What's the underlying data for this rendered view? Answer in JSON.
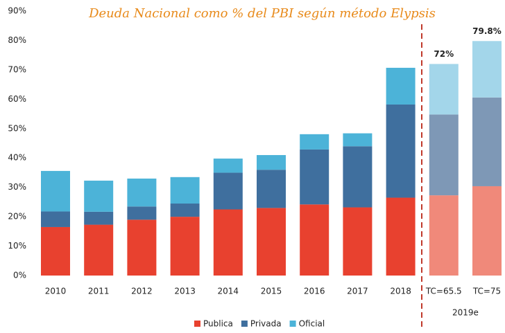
{
  "chart_data": {
    "type": "stacked_bar",
    "title": "Deuda Nacional como % del PBI según método Elypsis",
    "categories": [
      "2010",
      "2011",
      "2012",
      "2013",
      "2014",
      "2015",
      "2016",
      "2017",
      "2018",
      "TC=65.5",
      "TC=75"
    ],
    "group_label": "2019e",
    "series": [
      {
        "name": "Publica",
        "color": "#e8412f",
        "colors": [
          "#e8412f",
          "#e8412f",
          "#e8412f",
          "#e8412f",
          "#e8412f",
          "#e8412f",
          "#e8412f",
          "#e8412f",
          "#e8412f",
          "#f0897a",
          "#f0897a"
        ],
        "values": [
          16.5,
          17.3,
          19,
          20,
          22.5,
          23,
          24.2,
          23.2,
          26.5,
          27.3,
          30.4
        ]
      },
      {
        "name": "Privada",
        "color": "#3f6f9e",
        "colors": [
          "#3f6f9e",
          "#3f6f9e",
          "#3f6f9e",
          "#3f6f9e",
          "#3f6f9e",
          "#3f6f9e",
          "#3f6f9e",
          "#3f6f9e",
          "#3f6f9e",
          "#7e98b6",
          "#7e98b6"
        ],
        "values": [
          5.3,
          4.4,
          4.5,
          4.5,
          12.5,
          13,
          18.7,
          20.8,
          31.7,
          27.5,
          30.2
        ]
      },
      {
        "name": "Oficial",
        "color": "#4cb3d8",
        "colors": [
          "#4cb3d8",
          "#4cb3d8",
          "#4cb3d8",
          "#4cb3d8",
          "#4cb3d8",
          "#4cb3d8",
          "#4cb3d8",
          "#4cb3d8",
          "#4cb3d8",
          "#a3d6ea",
          "#a3d6ea"
        ],
        "values": [
          13.8,
          10.6,
          9.5,
          9,
          4.8,
          5,
          5.2,
          4.4,
          12.5,
          17.2,
          19.2
        ]
      }
    ],
    "annotations": [
      {
        "text": "72%",
        "value": 72,
        "category": "TC=65.5"
      },
      {
        "text": "79.8%",
        "value": 79.8,
        "category": "TC=75"
      }
    ],
    "ylim": [
      0,
      90
    ],
    "yticks": [
      {
        "value": 0,
        "label": "0%"
      },
      {
        "value": 10,
        "label": "10%"
      },
      {
        "value": 20,
        "label": "20%"
      },
      {
        "value": 30,
        "label": "30%"
      },
      {
        "value": 40,
        "label": "40%"
      },
      {
        "value": 50,
        "label": "50%"
      },
      {
        "value": 60,
        "label": "60%"
      },
      {
        "value": 70,
        "label": "70%"
      },
      {
        "value": 80,
        "label": "80%"
      },
      {
        "value": 90,
        "label": "90%"
      }
    ],
    "grid": false
  }
}
